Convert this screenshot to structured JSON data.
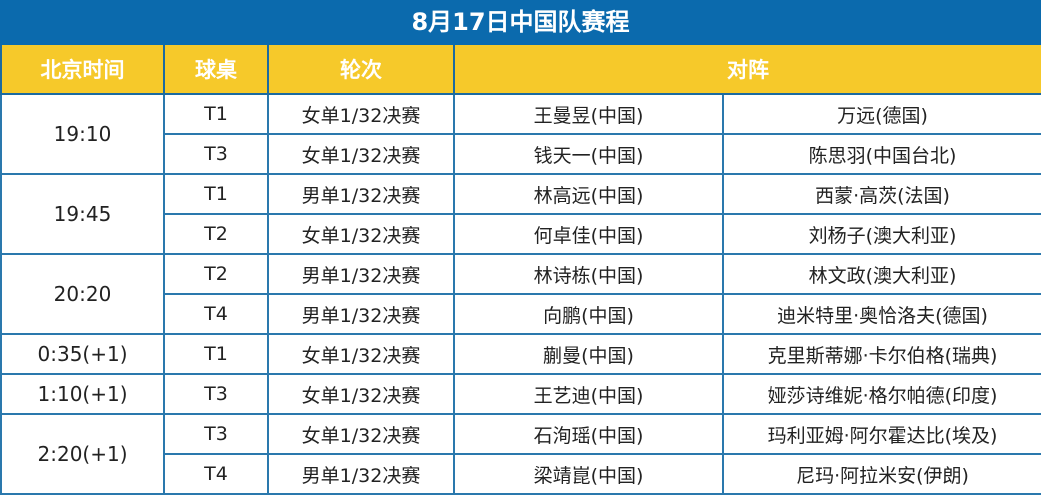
{
  "title": "8月17日中国队赛程",
  "colors": {
    "title_bg": "#0b6aad",
    "header_bg": "#f6c92a",
    "grid": "#2a78ad"
  },
  "headers": {
    "time": "北京时间",
    "table": "球桌",
    "round": "轮次",
    "matchup": "对阵"
  },
  "groups": [
    {
      "time": "19:10",
      "matches": [
        {
          "table": "T1",
          "round": "女单1/32决赛",
          "player": "王曼昱(中国)",
          "opponent": "万远(德国)"
        },
        {
          "table": "T3",
          "round": "女单1/32决赛",
          "player": "钱天一(中国)",
          "opponent": "陈思羽(中国台北)"
        }
      ]
    },
    {
      "time": "19:45",
      "matches": [
        {
          "table": "T1",
          "round": "男单1/32决赛",
          "player": "林高远(中国)",
          "opponent": "西蒙·高茨(法国)"
        },
        {
          "table": "T2",
          "round": "女单1/32决赛",
          "player": "何卓佳(中国)",
          "opponent": "刘杨子(澳大利亚)"
        }
      ]
    },
    {
      "time": "20:20",
      "matches": [
        {
          "table": "T2",
          "round": "男单1/32决赛",
          "player": "林诗栋(中国)",
          "opponent": "林文政(澳大利亚)"
        },
        {
          "table": "T4",
          "round": "男单1/32决赛",
          "player": "向鹏(中国)",
          "opponent": "迪米特里·奥恰洛夫(德国)"
        }
      ]
    },
    {
      "time": "0:35(+1)",
      "matches": [
        {
          "table": "T1",
          "round": "女单1/32决赛",
          "player": "蒯曼(中国)",
          "opponent": "克里斯蒂娜·卡尔伯格(瑞典)"
        }
      ]
    },
    {
      "time": "1:10(+1)",
      "matches": [
        {
          "table": "T3",
          "round": "女单1/32决赛",
          "player": "王艺迪(中国)",
          "opponent": "娅莎诗维妮·格尔帕德(印度)"
        }
      ]
    },
    {
      "time": "2:20(+1)",
      "matches": [
        {
          "table": "T3",
          "round": "女单1/32决赛",
          "player": "石洵瑶(中国)",
          "opponent": "玛利亚姆·阿尔霍达比(埃及)"
        },
        {
          "table": "T4",
          "round": "男单1/32决赛",
          "player": "梁靖崑(中国)",
          "opponent": "尼玛·阿拉米安(伊朗)"
        }
      ]
    }
  ]
}
